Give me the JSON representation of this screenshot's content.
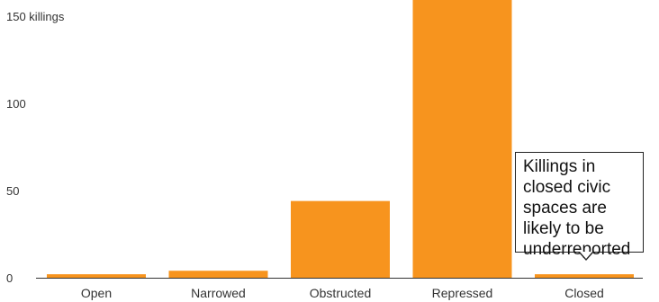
{
  "chart_data": {
    "type": "bar",
    "title": "",
    "xlabel": "",
    "ylabel": "",
    "categories": [
      "Open",
      "Narrowed",
      "Obstructed",
      "Repressed",
      "Closed"
    ],
    "values": [
      2,
      4,
      44,
      160,
      2
    ],
    "ylim": [
      0,
      150
    ],
    "yticks": [
      {
        "value": 0,
        "label": "0"
      },
      {
        "value": 50,
        "label": "50"
      },
      {
        "value": 100,
        "label": "100"
      },
      {
        "value": 150,
        "label": "150 killings"
      }
    ],
    "bar_color": "#f7941e",
    "axis_color": "#333333",
    "grid": false,
    "annotation": {
      "category": "Closed",
      "text": "Killings in closed civic spaces are likely to be underreported"
    }
  }
}
